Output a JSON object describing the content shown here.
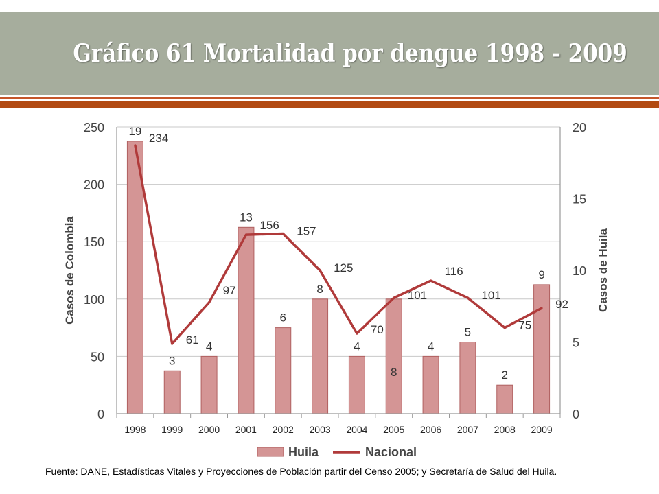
{
  "title": "Gráfico 61 Mortalidad por dengue 1998 - 2009",
  "source": "Fuente: DANE, Estadísticas Vitales y Proyecciones de Población partir del Censo 2005; y Secretaría de Salud del Huila.",
  "colors": {
    "title_band": "#a6ad9d",
    "rule": "#b24a12",
    "bar_fill": "#d49595",
    "bar_stroke": "#b06060",
    "line": "#b03a3a"
  },
  "chart_data": {
    "type": "bar",
    "categories": [
      "1998",
      "1999",
      "2000",
      "2001",
      "2002",
      "2003",
      "2004",
      "2005",
      "2006",
      "2007",
      "2008",
      "2009"
    ],
    "series": [
      {
        "name": "Huila",
        "type": "bar",
        "axis": "right",
        "values": [
          19,
          3,
          4,
          13,
          6,
          8,
          4,
          8,
          4,
          5,
          2,
          9
        ],
        "labels": [
          "19",
          "3",
          "4",
          "13",
          "6",
          "8",
          "4",
          "8",
          "4",
          "5",
          "2",
          "9"
        ]
      },
      {
        "name": "Nacional",
        "type": "line",
        "axis": "left",
        "values": [
          234,
          61,
          97,
          156,
          157,
          125,
          70,
          101,
          116,
          101,
          75,
          92
        ],
        "labels": [
          "234",
          "61",
          "97",
          "156",
          "157",
          "125",
          "70",
          "101",
          "116",
          "101",
          "75",
          "92"
        ]
      }
    ],
    "ylabel": "Casos  de Colombia",
    "y2label": "Casos  de Huila",
    "ylim": [
      0,
      250
    ],
    "y2lim": [
      0,
      20
    ],
    "yticks": [
      "0",
      "50",
      "100",
      "150",
      "200",
      "250"
    ],
    "y2ticks": [
      "0",
      "5",
      "10",
      "15",
      "20"
    ],
    "grid": true,
    "legend": "bottom"
  }
}
